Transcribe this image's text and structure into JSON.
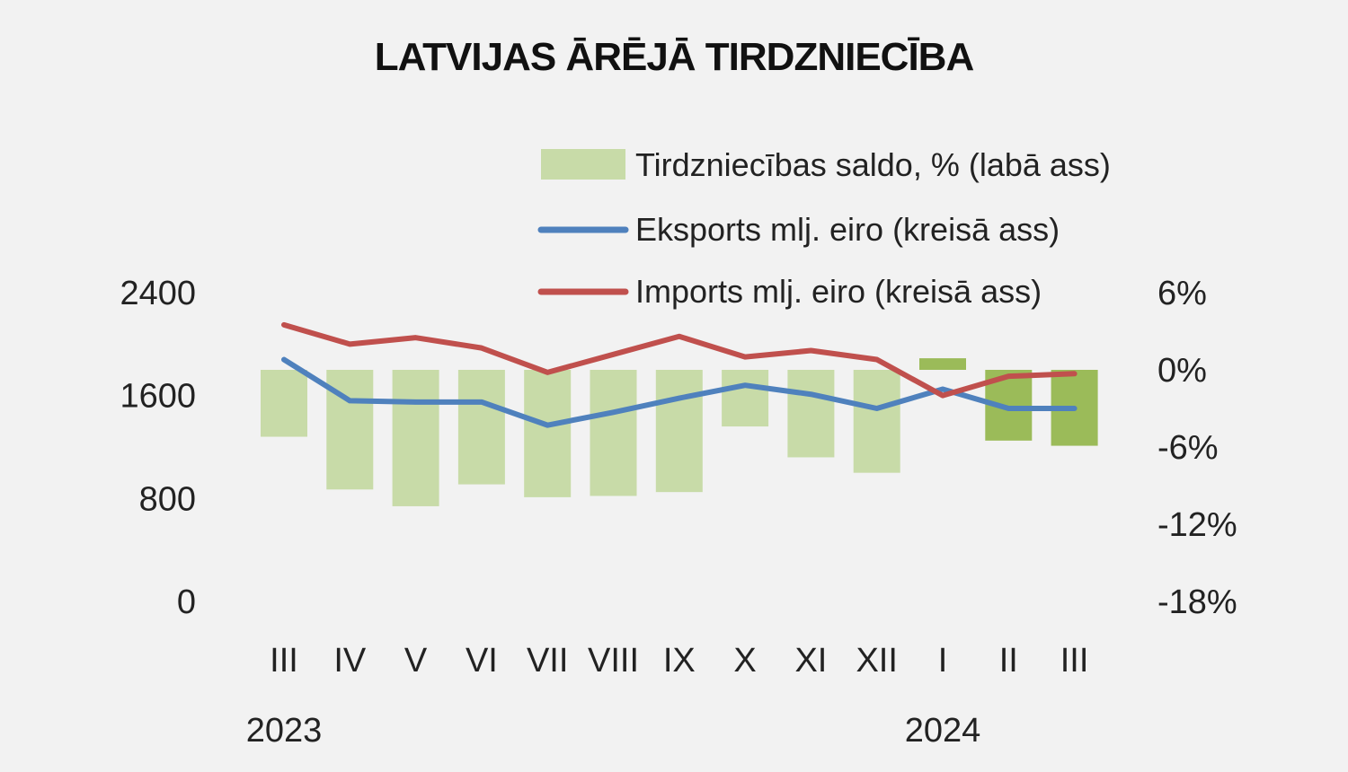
{
  "chart_data": {
    "type": "bar+line",
    "title": "LATVIJAS ĀRĒJĀ TIRDZNIECĪBA",
    "categories": [
      "III",
      "IV",
      "V",
      "VI",
      "VII",
      "VIII",
      "IX",
      "X",
      "XI",
      "XII",
      "I",
      "II",
      "III"
    ],
    "year_labels": [
      {
        "label": "2023",
        "category_index": 0
      },
      {
        "label": "2024",
        "category_index": 10
      }
    ],
    "left_axis": {
      "ticks": [
        "0",
        "800",
        "1600",
        "2400"
      ],
      "ylim": [
        0,
        2400
      ]
    },
    "right_axis": {
      "ticks": [
        "-18%",
        "-12%",
        "-6%",
        "0%",
        "6%"
      ],
      "ylim": [
        -18,
        6
      ]
    },
    "series": [
      {
        "name": "Tirdzniecības saldo, % (labā ass)",
        "type": "bar",
        "axis": "right",
        "values": [
          -5.2,
          -9.3,
          -10.6,
          -8.9,
          -9.9,
          -9.8,
          -9.5,
          -4.4,
          -6.8,
          -8.0,
          0.9,
          -5.5,
          -5.9
        ],
        "colors": [
          "#c8dba8",
          "#c8dba8",
          "#c8dba8",
          "#c8dba8",
          "#c8dba8",
          "#c8dba8",
          "#c8dba8",
          "#c8dba8",
          "#c8dba8",
          "#c8dba8",
          "#9bbb59",
          "#9bbb59",
          "#9bbb59"
        ]
      },
      {
        "name": "Eksports milj. eiro (kreisā ass)",
        "type": "line",
        "axis": "left",
        "color": "#4f81bd",
        "values": [
          1880,
          1560,
          1550,
          1550,
          1370,
          1470,
          1580,
          1680,
          1610,
          1500,
          1650,
          1500,
          1500
        ]
      },
      {
        "name": "Imports milj. eiro (kreisā ass)",
        "type": "line",
        "axis": "left",
        "color": "#c0504d",
        "values": [
          2150,
          2000,
          2050,
          1970,
          1780,
          1920,
          2060,
          1900,
          1950,
          1880,
          1600,
          1750,
          1770
        ]
      }
    ],
    "legend": [
      {
        "label": "Tirdzniecības saldo, % (labā ass)",
        "symbol": "bar",
        "color": "#c8dba8"
      },
      {
        "label": "Eksports mlj. eiro (kreisā ass)",
        "symbol": "line",
        "color": "#4f81bd"
      },
      {
        "label": "Imports mlj. eiro (kreisā ass)",
        "symbol": "line",
        "color": "#c0504d"
      }
    ],
    "legend_position": "top-center"
  }
}
